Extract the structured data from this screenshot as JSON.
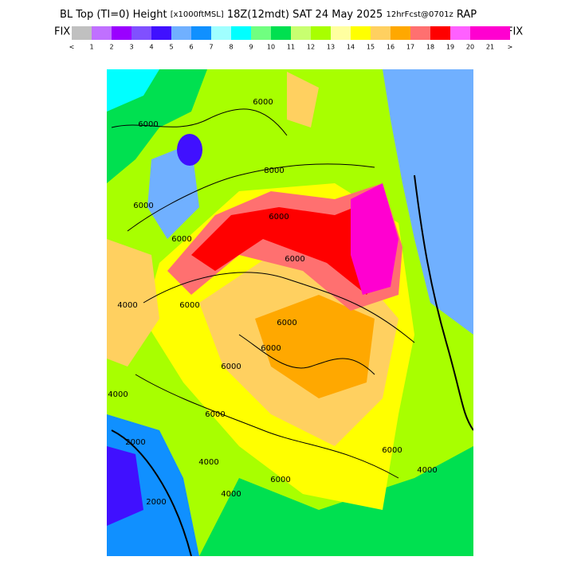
{
  "header": {
    "title": [
      "BL Top (TI=0) Height",
      "[x1000ftMSL]",
      "18Z(12mdt) SAT 24 May 2025",
      "12hrFcst@0701z",
      "RAP"
    ]
  },
  "colorbar": {
    "left": "FIX",
    "right": "FIX",
    "colors": [
      "#c0c0c0",
      "#c070ff",
      "#9a00ff",
      "#8050ff",
      "#4010ff",
      "#70b0ff",
      "#1090ff",
      "#a0ffff",
      "#00ffff",
      "#70ff80",
      "#00e050",
      "#c8ff70",
      "#a8ff00",
      "#ffffa0",
      "#ffff00",
      "#ffd060",
      "#ffa800",
      "#ff7070",
      "#ff0000",
      "#ff60ff",
      "#ff00d0",
      "#ff00d0"
    ],
    "labels": [
      "<",
      "1",
      "2",
      "3",
      "4",
      "5",
      "6",
      "7",
      "8",
      "9",
      "10",
      "11",
      "12",
      "13",
      "14",
      "15",
      "16",
      "17",
      "18",
      "19",
      "20",
      "21",
      ">"
    ]
  },
  "map": {
    "contour_labels": [
      "6000",
      "6000",
      "6000",
      "6000",
      "8000",
      "6000",
      "4000",
      "6000",
      "6000",
      "6000",
      "6000",
      "6000",
      "4000",
      "6000",
      "2000",
      "4000",
      "2000",
      "4000",
      "6000",
      "4000",
      "6000"
    ]
  }
}
